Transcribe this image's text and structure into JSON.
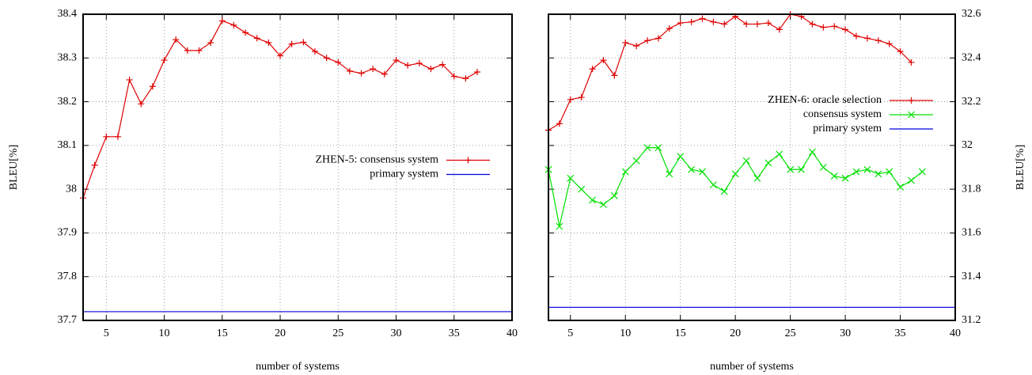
{
  "chart_data": [
    {
      "type": "line",
      "xlabel": "number of systems",
      "ylabel": "BLEU[%]",
      "y_axis_side": "left",
      "xlim": [
        3,
        40
      ],
      "xticks": [
        5,
        10,
        15,
        20,
        25,
        30,
        35,
        40
      ],
      "ylim": [
        37.7,
        38.4
      ],
      "yticks": [
        37.7,
        37.8,
        37.9,
        38,
        38.1,
        38.2,
        38.3,
        38.4
      ],
      "grid": true,
      "legend": "center right",
      "series": [
        {
          "name": "ZHEN-5: consensus system",
          "color": "#e00000",
          "marker": "plus",
          "x": [
            3,
            4,
            5,
            6,
            7,
            8,
            9,
            10,
            11,
            12,
            13,
            14,
            15,
            16,
            17,
            18,
            19,
            20,
            21,
            22,
            23,
            24,
            25,
            26,
            27,
            28,
            29,
            30,
            31,
            32,
            33,
            34,
            35,
            36,
            37
          ],
          "values": [
            37.98,
            38.055,
            38.12,
            38.12,
            38.25,
            38.195,
            38.235,
            38.295,
            38.342,
            38.317,
            38.317,
            38.335,
            38.385,
            38.375,
            38.358,
            38.345,
            38.335,
            38.305,
            38.332,
            38.336,
            38.315,
            38.3,
            38.29,
            38.27,
            38.265,
            38.275,
            38.263,
            38.295,
            38.283,
            38.288,
            38.275,
            38.285,
            38.258,
            38.253,
            38.268
          ]
        },
        {
          "name": "primary system",
          "color": "#0000e0",
          "marker": "none",
          "x": [
            3,
            40
          ],
          "values": [
            37.72,
            37.72
          ]
        }
      ]
    },
    {
      "type": "line",
      "xlabel": "number of systems",
      "ylabel": "BLEU[%]",
      "y_axis_side": "right",
      "xlim": [
        3,
        40
      ],
      "xticks": [
        5,
        10,
        15,
        20,
        25,
        30,
        35,
        40
      ],
      "ylim": [
        31.2,
        32.6
      ],
      "yticks": [
        31.2,
        31.4,
        31.6,
        31.8,
        32,
        32.2,
        32.4,
        32.6
      ],
      "grid": true,
      "legend": "upper right",
      "series": [
        {
          "name": "ZHEN-6: oracle selection",
          "color": "#e00000",
          "marker": "plus",
          "x": [
            3,
            4,
            5,
            6,
            7,
            8,
            9,
            10,
            11,
            12,
            13,
            14,
            15,
            16,
            17,
            18,
            19,
            20,
            21,
            22,
            23,
            24,
            25,
            26,
            27,
            28,
            29,
            30,
            31,
            32,
            33,
            34,
            35,
            36
          ],
          "values": [
            32.07,
            32.1,
            32.21,
            32.22,
            32.35,
            32.39,
            32.32,
            32.47,
            32.455,
            32.48,
            32.49,
            32.535,
            32.56,
            32.565,
            32.58,
            32.565,
            32.555,
            32.59,
            32.555,
            32.555,
            32.56,
            32.53,
            32.6,
            32.59,
            32.555,
            32.54,
            32.545,
            32.53,
            32.5,
            32.49,
            32.48,
            32.465,
            32.43,
            32.38
          ]
        },
        {
          "name": "consensus system",
          "color": "#00e000",
          "marker": "cross",
          "x": [
            3,
            4,
            5,
            6,
            7,
            8,
            9,
            10,
            11,
            12,
            13,
            14,
            15,
            16,
            17,
            18,
            19,
            20,
            21,
            22,
            23,
            24,
            25,
            26,
            27,
            28,
            29,
            30,
            31,
            32,
            33,
            34,
            35,
            36,
            37
          ],
          "values": [
            31.89,
            31.63,
            31.85,
            31.8,
            31.75,
            31.73,
            31.77,
            31.88,
            31.93,
            31.99,
            31.99,
            31.87,
            31.95,
            31.89,
            31.88,
            31.82,
            31.79,
            31.87,
            31.93,
            31.85,
            31.92,
            31.96,
            31.89,
            31.89,
            31.97,
            31.9,
            31.86,
            31.85,
            31.88,
            31.89,
            31.87,
            31.88,
            31.81,
            31.84,
            31.88
          ]
        },
        {
          "name": "primary system",
          "color": "#0000e0",
          "marker": "none",
          "x": [
            3,
            40
          ],
          "values": [
            31.26,
            31.26
          ]
        }
      ]
    }
  ]
}
